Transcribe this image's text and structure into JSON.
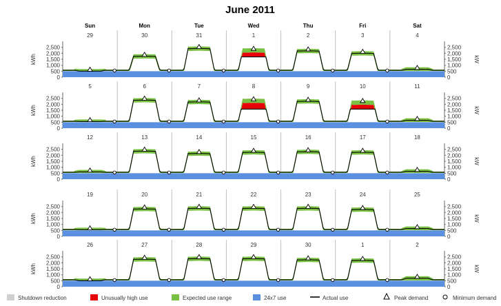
{
  "chart_data": {
    "type": "area",
    "title": "June 2011",
    "weekdays": [
      "Sun",
      "Mon",
      "Tue",
      "Wed",
      "Thu",
      "Fri",
      "Sat"
    ],
    "y_left_label": "kWh",
    "y_right_label": "kW",
    "y_ticks": [
      "0",
      "500",
      "1,000",
      "1,500",
      "2,000",
      "2,500"
    ],
    "ylim": [
      0,
      3000
    ],
    "weeks": [
      {
        "dates": [
          "29",
          "30",
          "31",
          "1",
          "2",
          "3",
          "4"
        ],
        "peak_kw": [
          550,
          1800,
          2450,
          2300,
          2250,
          2050,
          700
        ],
        "high_use_kw": [
          0,
          0,
          0,
          1700,
          0,
          0,
          0
        ],
        "min_marker_days": [
          0,
          1,
          2,
          3,
          4,
          5
        ]
      },
      {
        "dates": [
          "5",
          "6",
          "7",
          "8",
          "9",
          "10",
          "11"
        ],
        "peak_kw": [
          600,
          2400,
          2250,
          2350,
          2300,
          2200,
          700
        ],
        "high_use_kw": [
          0,
          0,
          0,
          1600,
          0,
          1600,
          0
        ],
        "min_marker_days": [
          0,
          1,
          2,
          3,
          5
        ]
      },
      {
        "dates": [
          "12",
          "13",
          "14",
          "15",
          "16",
          "17",
          "18"
        ],
        "peak_kw": [
          650,
          2400,
          2200,
          2300,
          2350,
          2300,
          700
        ],
        "high_use_kw": [
          0,
          0,
          0,
          0,
          0,
          0,
          0
        ],
        "min_marker_days": [
          0,
          1,
          2,
          3,
          4,
          5
        ]
      },
      {
        "dates": [
          "19",
          "20",
          "21",
          "22",
          "23",
          "24",
          "25"
        ],
        "peak_kw": [
          600,
          2350,
          2400,
          2400,
          2400,
          2300,
          700
        ],
        "high_use_kw": [
          0,
          0,
          0,
          0,
          0,
          0,
          0
        ],
        "min_marker_days": [
          0,
          1,
          2,
          3,
          4,
          5
        ]
      },
      {
        "dates": [
          "26",
          "27",
          "28",
          "29",
          "30",
          "1",
          "2"
        ],
        "peak_kw": [
          550,
          2350,
          2400,
          2400,
          2300,
          2250,
          750
        ],
        "high_use_kw": [
          0,
          0,
          0,
          0,
          0,
          0,
          0
        ],
        "min_marker_days": [
          0,
          1,
          2,
          3,
          4,
          5
        ]
      }
    ],
    "baseline_kw": 500,
    "legend": [
      {
        "name": "Shutdown reduction",
        "kind": "swatch",
        "color": "#d0d0d0"
      },
      {
        "name": "Unusually high use",
        "kind": "swatch",
        "color": "#e8000b"
      },
      {
        "name": "Expected use range",
        "kind": "swatch",
        "color": "#7ac143"
      },
      {
        "name": "24x7 use",
        "kind": "swatch",
        "color": "#5b8fe0"
      },
      {
        "name": "Actual use",
        "kind": "line",
        "color": "#000000"
      },
      {
        "name": "Peak demand",
        "kind": "triangle",
        "color": "#000000"
      },
      {
        "name": "Minimum demand",
        "kind": "circle",
        "color": "#000000"
      }
    ],
    "colors": {
      "expected": "#7ac143",
      "high": "#e8000b",
      "base": "#5b8fe0",
      "actual": "#000000",
      "grid": "#bfbfbf"
    }
  }
}
